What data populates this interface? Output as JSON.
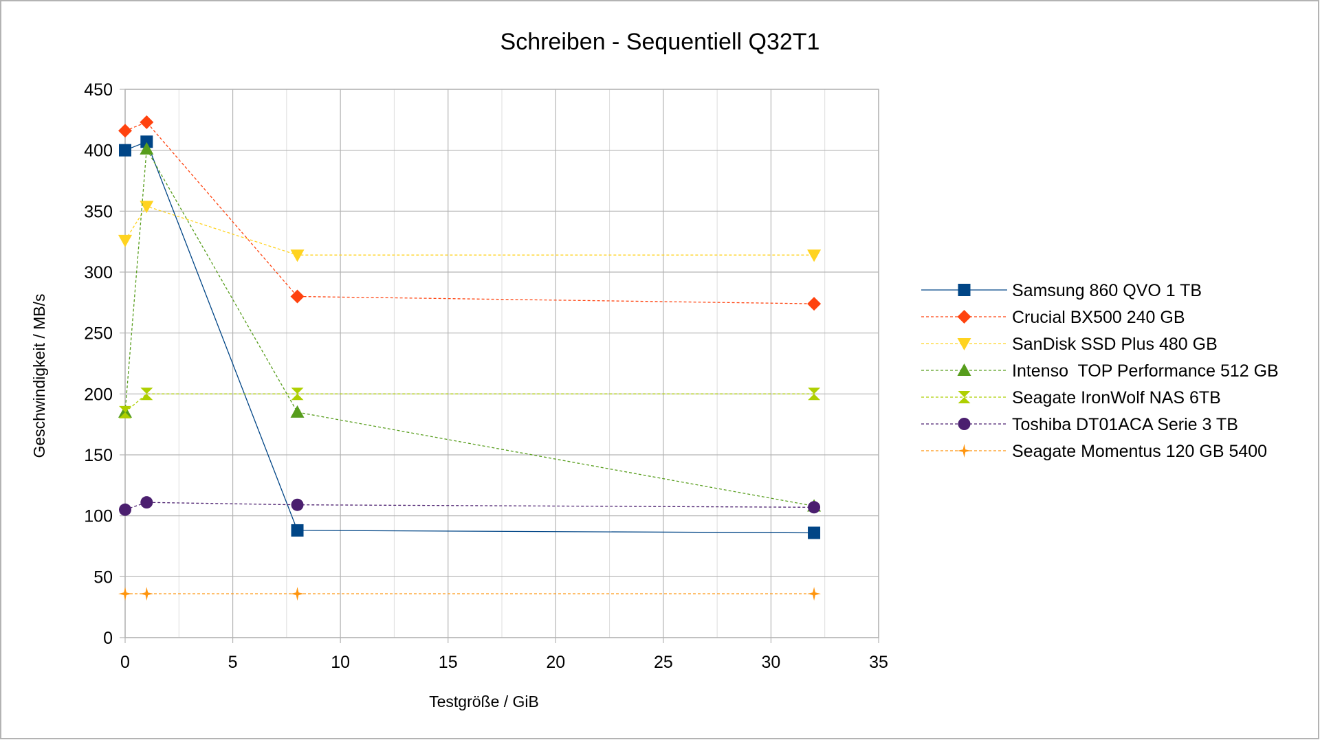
{
  "chart_data": {
    "type": "scatter",
    "title": "Schreiben - Sequentiell Q32T1",
    "xlabel": "Testgröße / GiB",
    "ylabel": "Geschwindigkeit / MB/s",
    "xlim": [
      0,
      35
    ],
    "ylim": [
      0,
      450
    ],
    "x_ticks": [
      0,
      5,
      10,
      15,
      20,
      25,
      30,
      35
    ],
    "y_ticks": [
      0,
      50,
      100,
      150,
      200,
      250,
      300,
      350,
      400,
      450
    ],
    "x_minor_ticks": [
      2.5,
      7.5,
      12.5,
      17.5,
      22.5,
      27.5,
      32.5
    ],
    "grid": true,
    "legend_position": "right",
    "x": [
      0,
      1,
      8,
      32
    ],
    "series": [
      {
        "name": "Samsung 860 QVO 1 TB",
        "values": [
          400,
          407,
          88,
          86
        ],
        "color": "#004586",
        "marker": "square",
        "line": "solid"
      },
      {
        "name": "Crucial BX500 240 GB",
        "values": [
          416,
          423,
          280,
          274
        ],
        "color": "#ff420e",
        "marker": "diamond",
        "line": "dashed"
      },
      {
        "name": "SanDisk SSD Plus 480 GB",
        "values": [
          326,
          354,
          314,
          314
        ],
        "color": "#ffd320",
        "marker": "triangle-down",
        "line": "dashed"
      },
      {
        "name": "Intenso  TOP Performance 512 GB",
        "values": [
          185,
          401,
          185,
          108
        ],
        "color": "#579d1c",
        "marker": "triangle-up",
        "line": "dashed"
      },
      {
        "name": "Seagate IronWolf NAS 6TB",
        "values": [
          185,
          200,
          200,
          200
        ],
        "color": "#aecf00",
        "marker": "hourglass",
        "line": "dashed"
      },
      {
        "name": "Toshiba DT01ACA Serie 3 TB",
        "values": [
          105,
          111,
          109,
          107
        ],
        "color": "#4b1f6f",
        "marker": "circle",
        "line": "dashed"
      },
      {
        "name": "Seagate Momentus 120 GB 5400",
        "values": [
          36,
          36,
          36,
          36
        ],
        "color": "#ff950e",
        "marker": "star",
        "line": "dashed"
      }
    ]
  }
}
